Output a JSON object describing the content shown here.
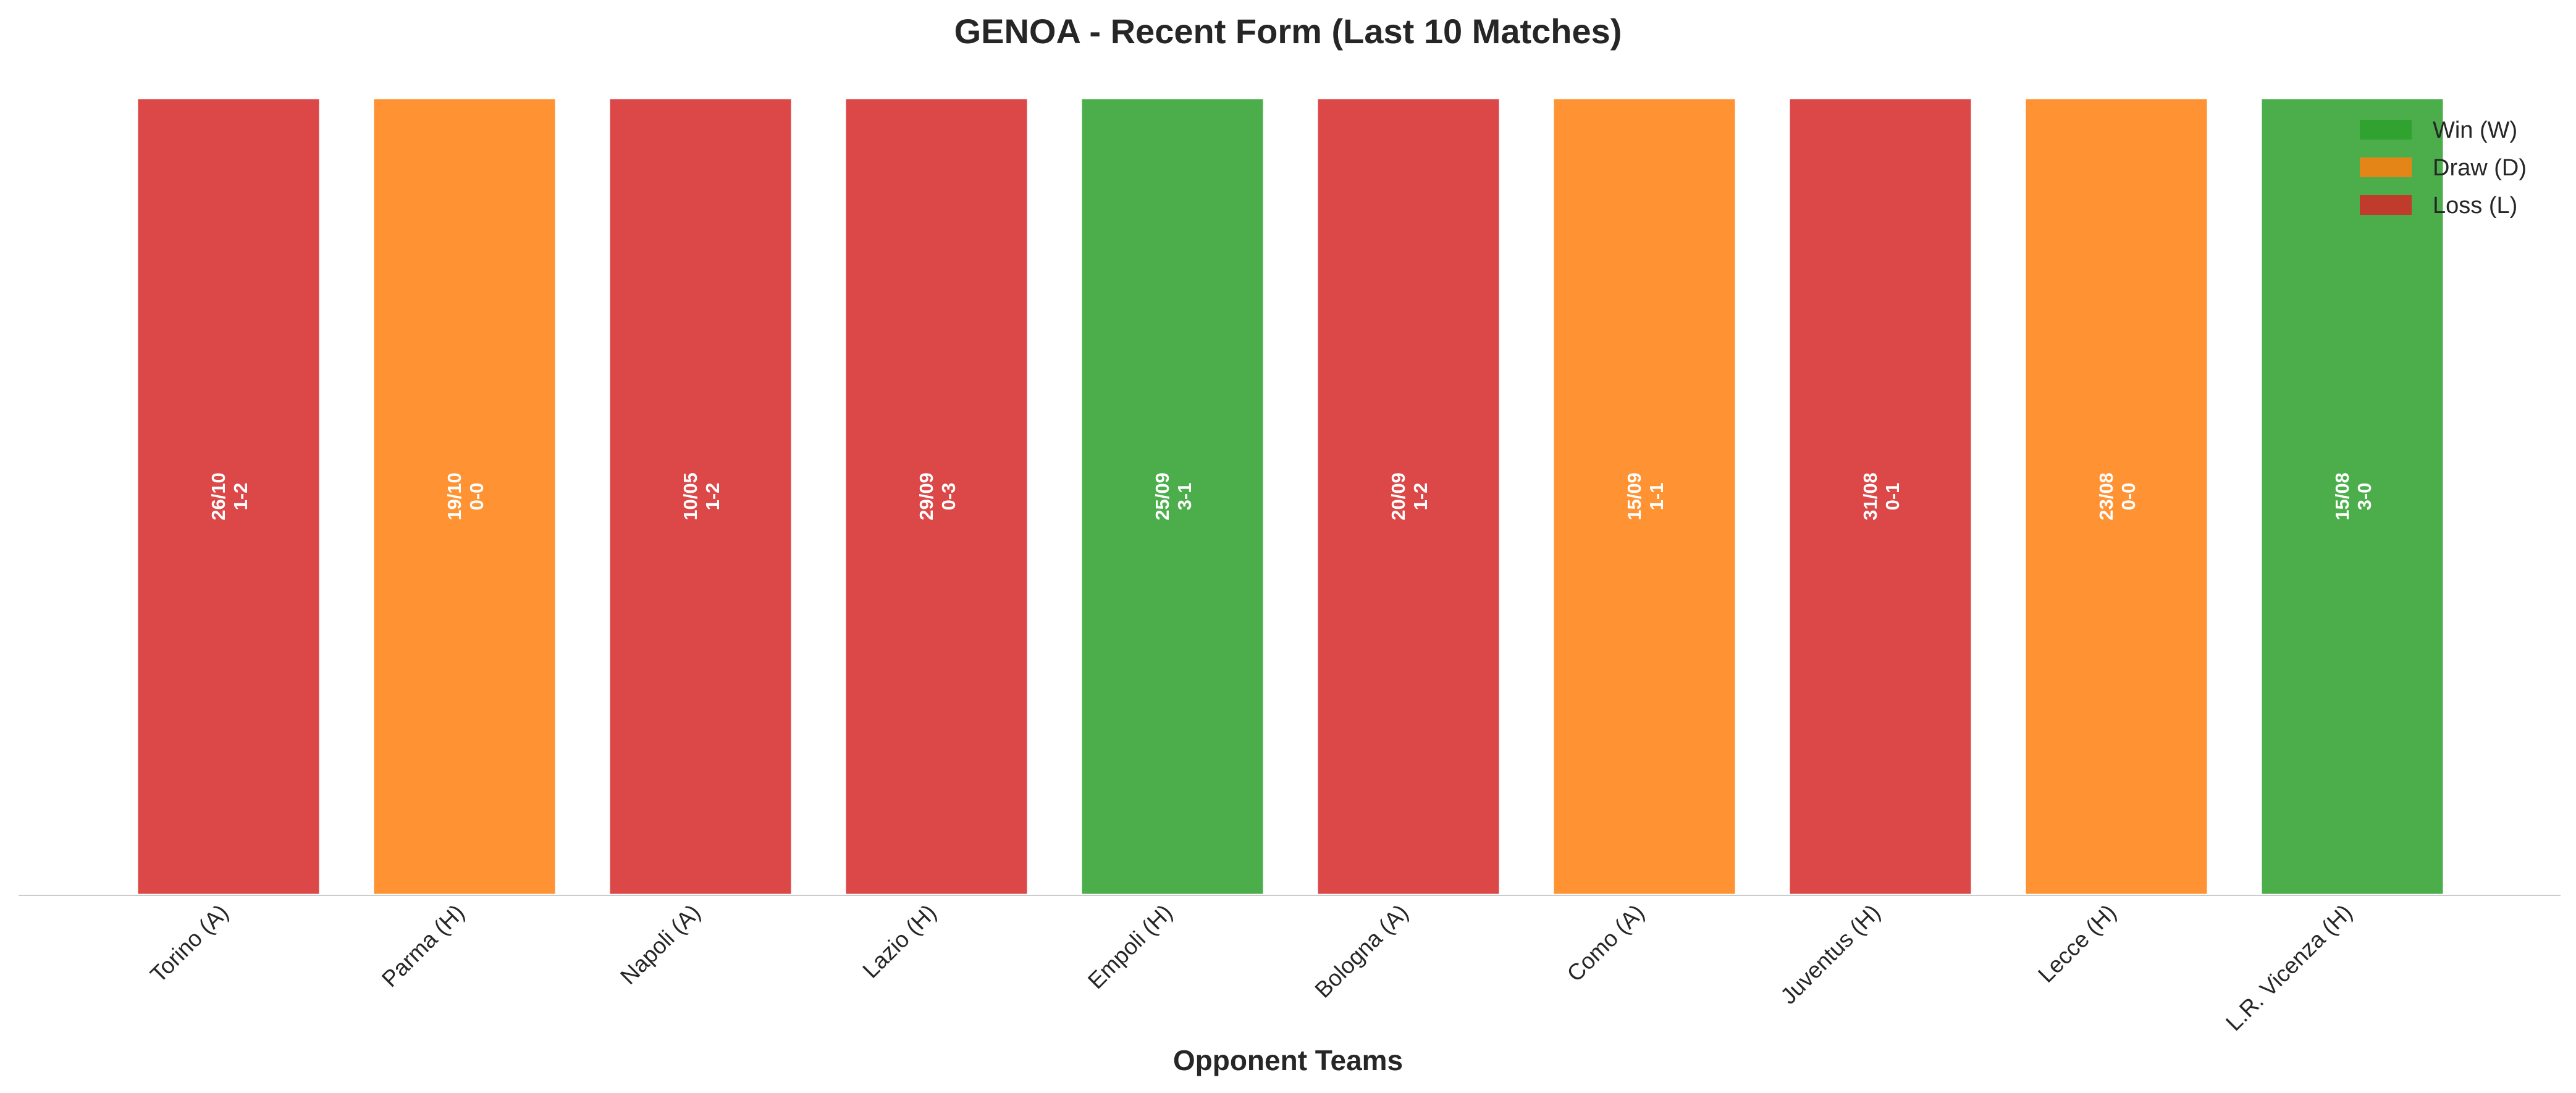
{
  "chart_data": {
    "type": "bar",
    "title": "GENOA - Recent Form (Last 10 Matches)",
    "xlabel": "Opponent Teams",
    "ylabel": "",
    "ylim": [
      0,
      1
    ],
    "grid": false,
    "legend_position": "top-right",
    "categories": [
      "Torino (A)",
      "Parma (H)",
      "Napoli (A)",
      "Lazio (H)",
      "Empoli (H)",
      "Bologna (A)",
      "Como (A)",
      "Juventus (H)",
      "Lecce (H)",
      "L.R. Vicenza (H)"
    ],
    "values": [
      1,
      1,
      1,
      1,
      1,
      1,
      1,
      1,
      1,
      1
    ],
    "results": [
      "L",
      "D",
      "L",
      "L",
      "W",
      "L",
      "D",
      "L",
      "D",
      "W"
    ],
    "dates": [
      "26/10",
      "19/10",
      "10/05",
      "29/09",
      "25/09",
      "20/09",
      "15/09",
      "31/08",
      "23/08",
      "15/08"
    ],
    "scores": [
      "1-2",
      "0-0",
      "1-2",
      "0-3",
      "3-1",
      "1-2",
      "1-1",
      "0-1",
      "0-0",
      "3-0"
    ],
    "legend": [
      {
        "key": "W",
        "label": "Win (W)",
        "color": "#2ca02c"
      },
      {
        "key": "D",
        "label": "Draw (D)",
        "color": "#ff7f0e"
      },
      {
        "key": "L",
        "label": "Loss (L)",
        "color": "#d62728"
      }
    ]
  }
}
